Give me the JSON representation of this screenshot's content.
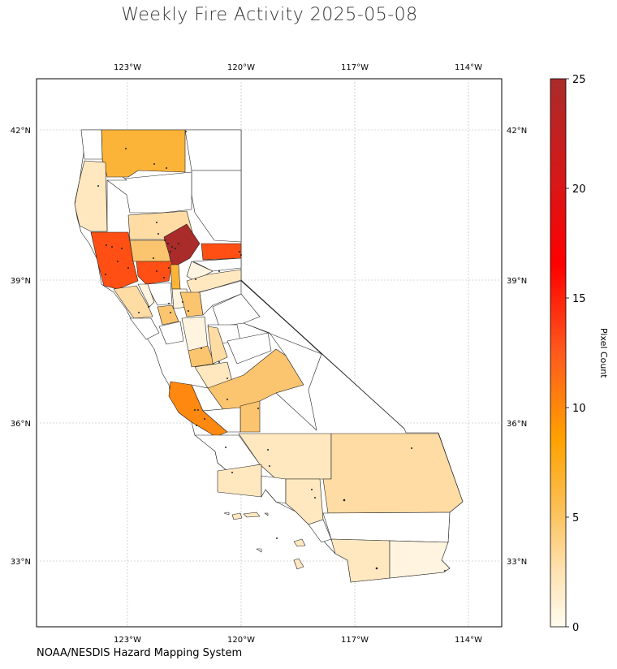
{
  "title": "Weekly Fire Activity 2025-05-08",
  "footer": "NOAA/NESDIS Hazard Mapping System",
  "colorbar": {
    "label": "Pixel Count",
    "ticks": [
      "0",
      "5",
      "10",
      "15",
      "20",
      "25"
    ],
    "min": 0,
    "max": 25
  },
  "map": {
    "lon_ticks": [
      "123°W",
      "120°W",
      "117°W",
      "114°W"
    ],
    "lat_ticks": [
      "42°N",
      "39°N",
      "36°N",
      "33°N"
    ],
    "lon_range": [
      -125.4,
      -113.1
    ],
    "lat_range": [
      31.7,
      43.0
    ],
    "gridlines": true
  },
  "colors": {
    "c1": "#fff4df",
    "c2": "#ffe8c0",
    "c3": "#ffdca4",
    "c4": "#fbc46e",
    "c5": "#fbb437",
    "c10": "#ff8810",
    "c13": "#ff4f14",
    "c23": "#a92b2a"
  }
}
